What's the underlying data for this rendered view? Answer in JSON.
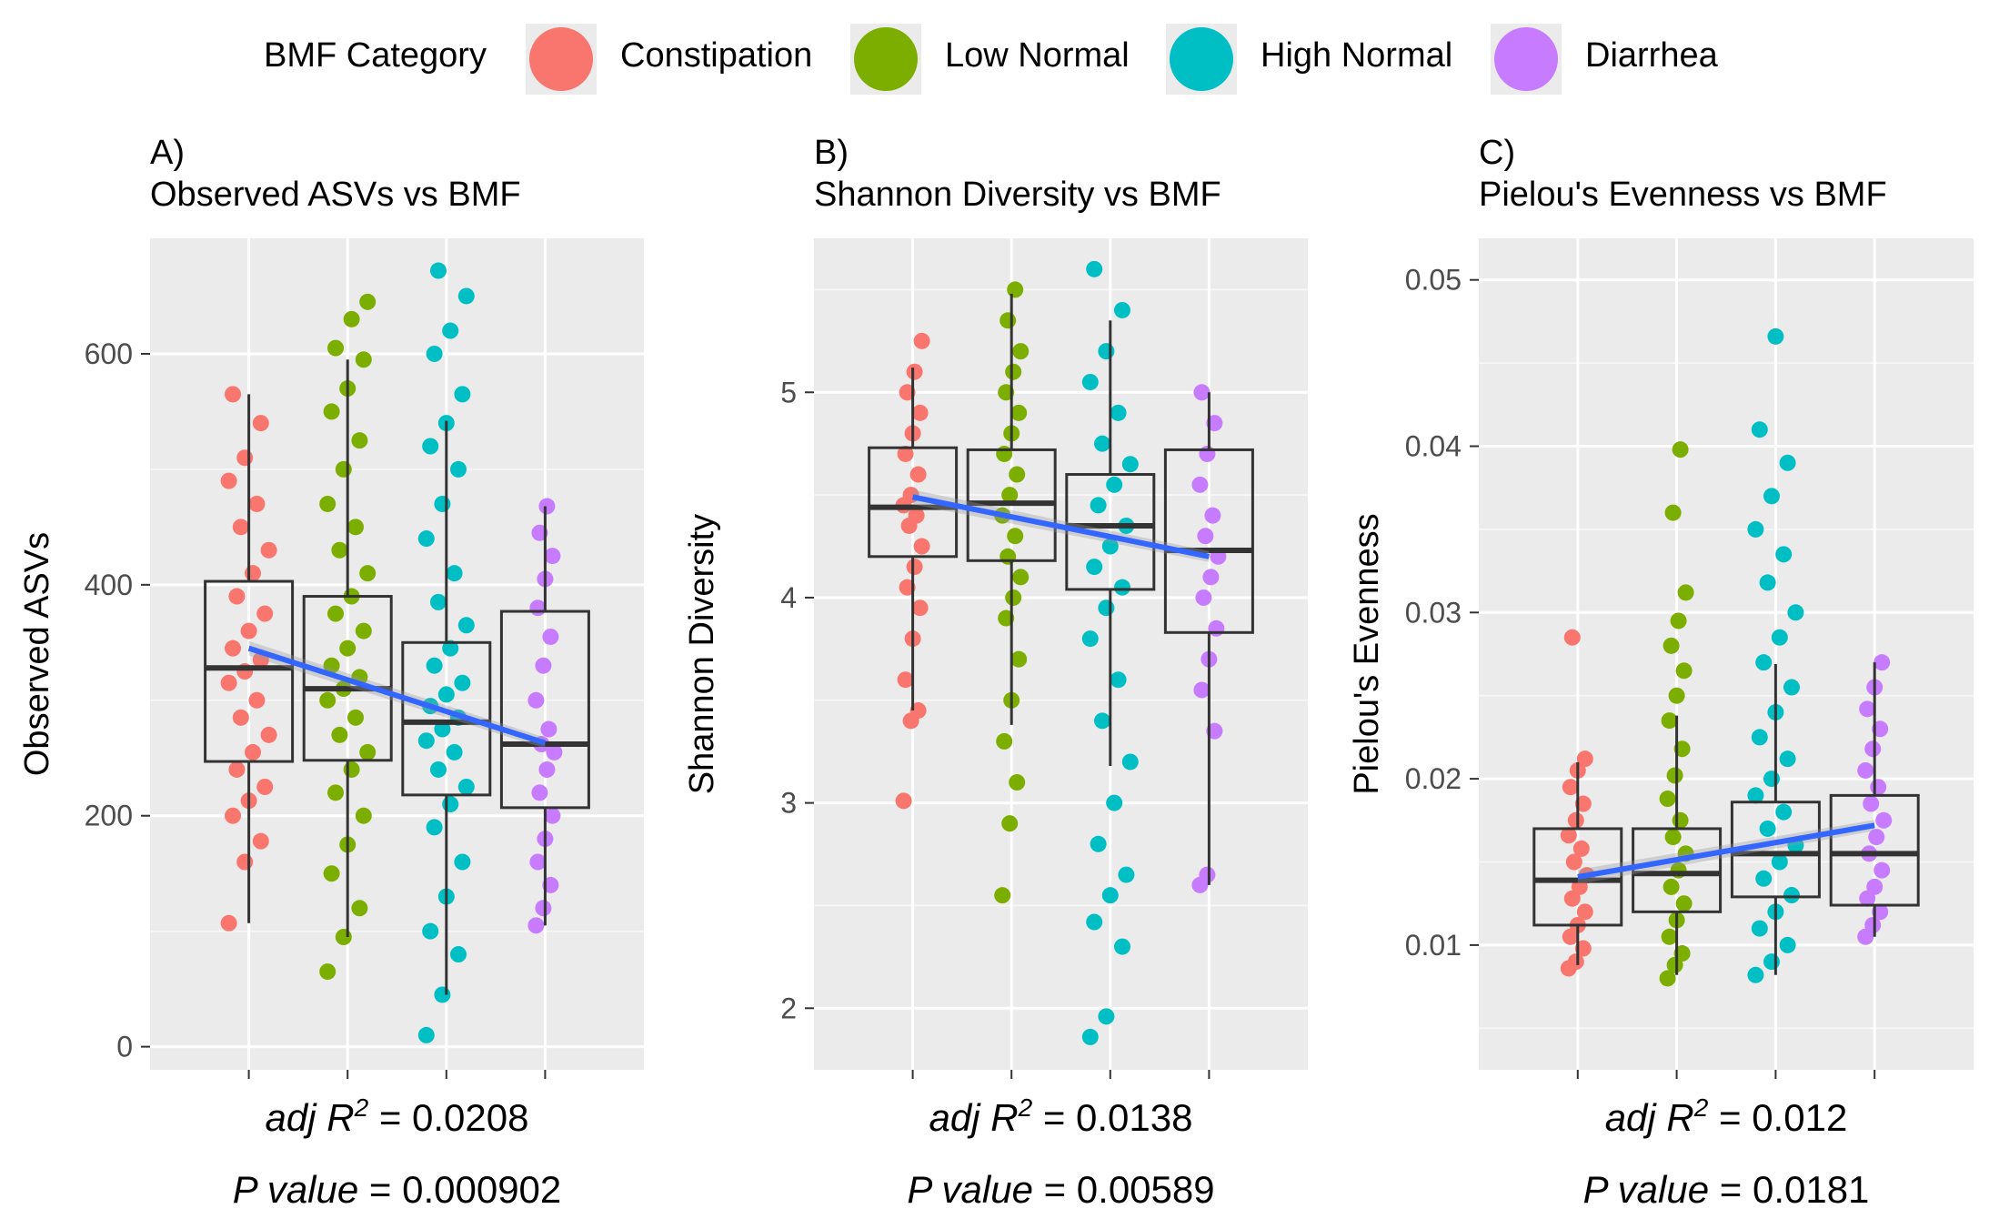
{
  "legend": {
    "title": "BMF Category",
    "items": [
      {
        "label": "Constipation",
        "color": "#F8766D"
      },
      {
        "label": "Low Normal",
        "color": "#7CAE00"
      },
      {
        "label": "High Normal",
        "color": "#00BFC4"
      },
      {
        "label": "Diarrhea",
        "color": "#C77CFF"
      }
    ]
  },
  "chart_data": [
    {
      "type": "box",
      "panel_tag": "A)",
      "title": "Observed ASVs vs BMF",
      "ylabel": "Observed ASVs",
      "xlabel": "",
      "ylim": [
        -20,
        700
      ],
      "yticks": [
        0,
        200,
        400,
        600
      ],
      "grid": true,
      "categories": [
        "Constipation",
        "Low Normal",
        "High Normal",
        "Diarrhea"
      ],
      "boxes": [
        {
          "category": "Constipation",
          "min": 107,
          "q1": 247,
          "median": 328,
          "q3": 403,
          "max": 565
        },
        {
          "category": "Low Normal",
          "min": 95,
          "q1": 248,
          "median": 310,
          "q3": 390,
          "max": 595
        },
        {
          "category": "High Normal",
          "min": 45,
          "q1": 218,
          "median": 281,
          "q3": 350,
          "max": 542
        },
        {
          "category": "Diarrhea",
          "min": 105,
          "q1": 207,
          "median": 262,
          "q3": 377,
          "max": 468
        }
      ],
      "points": {
        "Constipation": [
          107,
          160,
          178,
          200,
          213,
          225,
          240,
          255,
          270,
          285,
          300,
          315,
          325,
          335,
          345,
          360,
          375,
          390,
          410,
          430,
          450,
          470,
          490,
          510,
          540,
          565
        ],
        "Low Normal": [
          65,
          95,
          120,
          150,
          175,
          200,
          220,
          240,
          255,
          270,
          285,
          300,
          310,
          320,
          330,
          345,
          360,
          375,
          390,
          410,
          430,
          450,
          470,
          500,
          525,
          550,
          570,
          595,
          605,
          630,
          645
        ],
        "High Normal": [
          10,
          45,
          80,
          100,
          130,
          160,
          190,
          210,
          225,
          240,
          255,
          265,
          275,
          285,
          295,
          305,
          315,
          330,
          345,
          365,
          385,
          410,
          440,
          470,
          500,
          520,
          540,
          565,
          600,
          620,
          650,
          672
        ],
        "Diarrhea": [
          105,
          120,
          140,
          160,
          180,
          200,
          220,
          240,
          255,
          262,
          275,
          300,
          330,
          355,
          380,
          405,
          425,
          445,
          468
        ]
      },
      "trend": {
        "start": 345,
        "end": 263
      },
      "adj_r2_label": "adj R",
      "adj_r2_sup": "2",
      "adj_r2_eq": "=",
      "adj_r2_value": "0.0208",
      "p_label": "P value",
      "p_eq": "=",
      "p_value": "0.000902"
    },
    {
      "type": "box",
      "panel_tag": "B)",
      "title": "Shannon Diversity vs BMF",
      "ylabel": "Shannon Diversity",
      "xlabel": "",
      "ylim": [
        1.7,
        5.75
      ],
      "yticks": [
        2,
        3,
        4,
        5
      ],
      "grid": true,
      "categories": [
        "Constipation",
        "Low Normal",
        "High Normal",
        "Diarrhea"
      ],
      "boxes": [
        {
          "category": "Constipation",
          "min": 3.45,
          "q1": 4.2,
          "median": 4.44,
          "q3": 4.73,
          "max": 5.12
        },
        {
          "category": "Low Normal",
          "min": 3.38,
          "q1": 4.18,
          "median": 4.46,
          "q3": 4.72,
          "max": 5.48
        },
        {
          "category": "High Normal",
          "min": 3.18,
          "q1": 4.04,
          "median": 4.35,
          "q3": 4.6,
          "max": 5.35
        },
        {
          "category": "Diarrhea",
          "min": 2.6,
          "q1": 3.83,
          "median": 4.23,
          "q3": 4.72,
          "max": 5.0
        }
      ],
      "points": {
        "Constipation": [
          3.01,
          3.4,
          3.45,
          3.6,
          3.8,
          3.95,
          4.05,
          4.15,
          4.25,
          4.35,
          4.4,
          4.45,
          4.5,
          4.6,
          4.7,
          4.8,
          4.9,
          5.0,
          5.1,
          5.25
        ],
        "Low Normal": [
          2.55,
          2.9,
          3.1,
          3.3,
          3.5,
          3.7,
          3.9,
          4.0,
          4.1,
          4.2,
          4.3,
          4.4,
          4.5,
          4.6,
          4.7,
          4.8,
          4.9,
          5.0,
          5.1,
          5.2,
          5.35,
          5.5
        ],
        "High Normal": [
          1.86,
          1.96,
          2.3,
          2.42,
          2.55,
          2.65,
          2.8,
          3.0,
          3.2,
          3.4,
          3.6,
          3.8,
          3.95,
          4.05,
          4.15,
          4.25,
          4.35,
          4.45,
          4.55,
          4.65,
          4.75,
          4.9,
          5.05,
          5.2,
          5.4,
          5.6
        ],
        "Diarrhea": [
          2.6,
          2.65,
          3.35,
          3.55,
          3.7,
          3.85,
          4.0,
          4.1,
          4.2,
          4.3,
          4.4,
          4.55,
          4.7,
          4.85,
          5.0
        ]
      },
      "trend": {
        "start": 4.49,
        "end": 4.2
      },
      "adj_r2_label": "adj R",
      "adj_r2_sup": "2",
      "adj_r2_eq": "=",
      "adj_r2_value": "0.0138",
      "p_label": "P value",
      "p_eq": "=",
      "p_value": "0.00589"
    },
    {
      "type": "box",
      "panel_tag": "C)",
      "title": "Pielou's Evenness vs BMF",
      "ylabel": "Pielou's Evenness",
      "xlabel": "",
      "ylim": [
        0.0025,
        0.0525
      ],
      "yticks": [
        0.01,
        0.02,
        0.03,
        0.04,
        0.05
      ],
      "grid": true,
      "categories": [
        "Constipation",
        "Low Normal",
        "High Normal",
        "Diarrhea"
      ],
      "boxes": [
        {
          "category": "Constipation",
          "min": 0.0088,
          "q1": 0.0112,
          "median": 0.0139,
          "q3": 0.017,
          "max": 0.021
        },
        {
          "category": "Low Normal",
          "min": 0.0082,
          "q1": 0.012,
          "median": 0.0143,
          "q3": 0.017,
          "max": 0.0238
        },
        {
          "category": "High Normal",
          "min": 0.0082,
          "q1": 0.0129,
          "median": 0.0155,
          "q3": 0.0186,
          "max": 0.0269
        },
        {
          "category": "Diarrhea",
          "min": 0.0105,
          "q1": 0.0124,
          "median": 0.0155,
          "q3": 0.019,
          "max": 0.027
        }
      ],
      "points": {
        "Constipation": [
          0.0086,
          0.009,
          0.0098,
          0.0105,
          0.0112,
          0.012,
          0.0128,
          0.0135,
          0.0142,
          0.015,
          0.0158,
          0.0166,
          0.0175,
          0.0185,
          0.0195,
          0.0205,
          0.0212,
          0.0285
        ],
        "Low Normal": [
          0.008,
          0.0088,
          0.0095,
          0.0105,
          0.0115,
          0.0125,
          0.0135,
          0.0145,
          0.0155,
          0.0165,
          0.0175,
          0.0188,
          0.0202,
          0.0218,
          0.0235,
          0.025,
          0.0265,
          0.028,
          0.0295,
          0.0312,
          0.036,
          0.0398
        ],
        "High Normal": [
          0.0082,
          0.009,
          0.01,
          0.011,
          0.012,
          0.013,
          0.014,
          0.015,
          0.016,
          0.017,
          0.018,
          0.019,
          0.02,
          0.0212,
          0.0225,
          0.024,
          0.0255,
          0.027,
          0.0285,
          0.03,
          0.0318,
          0.0335,
          0.035,
          0.037,
          0.039,
          0.041,
          0.0466
        ],
        "Diarrhea": [
          0.0105,
          0.0112,
          0.012,
          0.0128,
          0.0135,
          0.0145,
          0.0155,
          0.0165,
          0.0175,
          0.0185,
          0.0195,
          0.0205,
          0.0218,
          0.023,
          0.0242,
          0.0255,
          0.027
        ]
      },
      "trend": {
        "start": 0.0141,
        "end": 0.0172
      },
      "adj_r2_label": "adj R",
      "adj_r2_sup": "2",
      "adj_r2_eq": "=",
      "adj_r2_value": "0.012",
      "p_label": "P value",
      "p_eq": "=",
      "p_value": "0.0181"
    }
  ]
}
